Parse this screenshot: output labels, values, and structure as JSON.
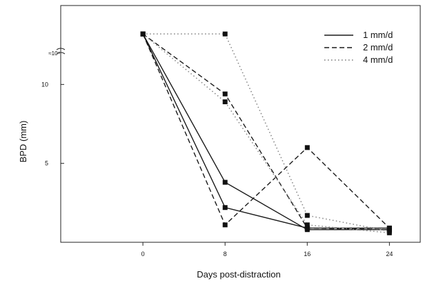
{
  "chart_data": {
    "type": "line",
    "xlabel": "Days post-distraction",
    "ylabel": "BPD (mm)",
    "x_ticks": [
      0,
      8,
      16,
      24
    ],
    "x_tick_labels": [
      "0",
      "8",
      "16",
      "24"
    ],
    "y_ticks": [
      5,
      10
    ],
    "y_tick_labels": [
      "5",
      "10"
    ],
    "y_break_label": "≈10⁴",
    "xlim": [
      -8,
      27
    ],
    "ylim": [
      0,
      15
    ],
    "grid": false,
    "legend_position": "top-right",
    "legend": [
      {
        "label": "1 mm/d",
        "style": "solid"
      },
      {
        "label": "2 mm/d",
        "style": "dashed"
      },
      {
        "label": "4 mm/d",
        "style": "dotted"
      }
    ],
    "series": [
      {
        "style": "solid",
        "marker": "square",
        "x": [
          0,
          8,
          16,
          24
        ],
        "y": [
          13.2,
          2.2,
          0.9,
          0.9
        ]
      },
      {
        "style": "solid",
        "marker": "square",
        "x": [
          0,
          8,
          16,
          24
        ],
        "y": [
          13.2,
          3.8,
          0.8,
          0.8
        ]
      },
      {
        "style": "dashed",
        "marker": "square",
        "x": [
          0,
          8,
          16,
          24
        ],
        "y": [
          13.2,
          1.1,
          6.0,
          0.9
        ]
      },
      {
        "style": "dashed",
        "marker": "square",
        "x": [
          0,
          8,
          16,
          24
        ],
        "y": [
          13.2,
          9.4,
          0.9,
          0.8
        ]
      },
      {
        "style": "dotted",
        "marker": "square",
        "x": [
          0,
          8,
          16,
          24
        ],
        "y": [
          13.2,
          13.2,
          1.7,
          0.7
        ]
      },
      {
        "style": "dotted",
        "marker": "square",
        "x": [
          0,
          8,
          16,
          24
        ],
        "y": [
          13.2,
          8.9,
          1.1,
          0.6
        ]
      }
    ]
  }
}
